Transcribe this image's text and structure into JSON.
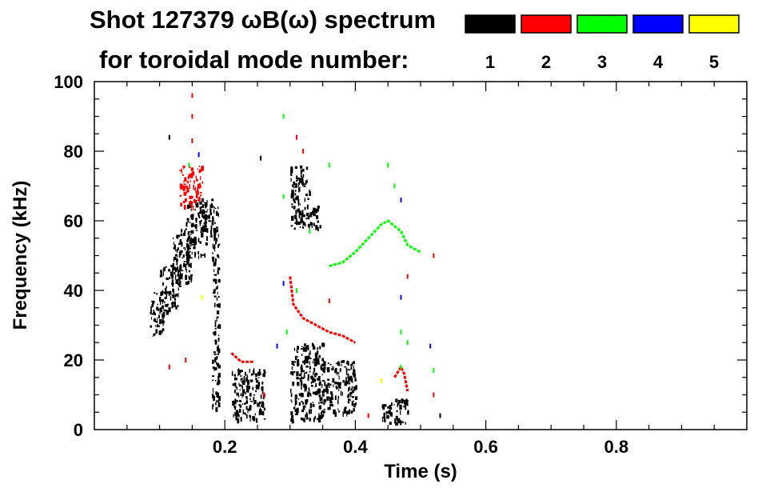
{
  "chart_data": {
    "type": "heatmap",
    "title_line1": "Shot 127379 ωB(ω) spectrum",
    "title_line2": "for toroidal mode number:",
    "xlabel": "Time (s)",
    "ylabel": "Frequency (kHz)",
    "xlim": [
      0.0,
      1.0
    ],
    "ylim": [
      0,
      100
    ],
    "x_ticks": [
      0.2,
      0.4,
      0.6,
      0.8
    ],
    "x_tick_labels": [
      "0.2",
      "0.4",
      "0.6",
      "0.8"
    ],
    "y_ticks": [
      0,
      20,
      40,
      60,
      80,
      100
    ],
    "y_tick_labels": [
      "0",
      "20",
      "40",
      "60",
      "80",
      "100"
    ],
    "legend": [
      {
        "label": "1",
        "color": "#000000"
      },
      {
        "label": "2",
        "color": "#ff0000"
      },
      {
        "label": "3",
        "color": "#00ff00"
      },
      {
        "label": "4",
        "color": "#0000ff"
      },
      {
        "label": "5",
        "color": "#ffff00"
      }
    ],
    "legend_placement": "top-right",
    "series": [
      {
        "mode": 1,
        "color": "#000000",
        "blobs": [
          {
            "t": [
              0.085,
              0.11
            ],
            "f": [
              27,
              40
            ]
          },
          {
            "t": [
              0.1,
              0.13
            ],
            "f": [
              35,
              48
            ]
          },
          {
            "t": [
              0.12,
              0.15
            ],
            "f": [
              42,
              58
            ]
          },
          {
            "t": [
              0.14,
              0.17
            ],
            "f": [
              50,
              66
            ]
          },
          {
            "t": [
              0.16,
              0.18
            ],
            "f": [
              55,
              67
            ]
          },
          {
            "t": [
              0.18,
              0.19
            ],
            "f": [
              5,
              65
            ]
          },
          {
            "t": [
              0.21,
              0.26
            ],
            "f": [
              3,
              18
            ]
          },
          {
            "t": [
              0.3,
              0.33
            ],
            "f": [
              58,
              76
            ]
          },
          {
            "t": [
              0.33,
              0.345
            ],
            "f": [
              58,
              65
            ]
          },
          {
            "t": [
              0.3,
              0.35
            ],
            "f": [
              3,
              25
            ]
          },
          {
            "t": [
              0.35,
              0.4
            ],
            "f": [
              5,
              20
            ]
          },
          {
            "t": [
              0.44,
              0.48
            ],
            "f": [
              2,
              9
            ]
          }
        ],
        "points": [
          [
            0.115,
            84
          ],
          [
            0.185,
            20
          ],
          [
            0.19,
            10
          ],
          [
            0.255,
            78
          ],
          [
            0.225,
            3
          ],
          [
            0.53,
            4
          ]
        ]
      },
      {
        "mode": 2,
        "color": "#ff0000",
        "blobs": [
          {
            "t": [
              0.13,
              0.165
            ],
            "f": [
              64,
              76
            ]
          }
        ],
        "lines": [
          [
            [
              0.3,
              44
            ],
            [
              0.305,
              36
            ],
            [
              0.32,
              32
            ],
            [
              0.34,
              30
            ],
            [
              0.36,
              28
            ],
            [
              0.38,
              27
            ],
            [
              0.395,
              25.5
            ],
            [
              0.4,
              25
            ]
          ],
          [
            [
              0.21,
              22
            ],
            [
              0.225,
              19.5
            ],
            [
              0.245,
              19.5
            ]
          ],
          [
            [
              0.46,
              15
            ],
            [
              0.47,
              18
            ],
            [
              0.475,
              16
            ],
            [
              0.48,
              11
            ]
          ]
        ],
        "points": [
          [
            0.15,
            96
          ],
          [
            0.15,
            90
          ],
          [
            0.15,
            83
          ],
          [
            0.31,
            84
          ],
          [
            0.32,
            80
          ],
          [
            0.36,
            37
          ],
          [
            0.48,
            44
          ],
          [
            0.52,
            10
          ],
          [
            0.52,
            50
          ],
          [
            0.115,
            18
          ],
          [
            0.14,
            20
          ],
          [
            0.26,
            10
          ],
          [
            0.42,
            4
          ]
        ]
      },
      {
        "mode": 3,
        "color": "#00ff00",
        "lines": [
          [
            [
              0.36,
              47
            ],
            [
              0.38,
              48
            ],
            [
              0.4,
              51
            ],
            [
              0.42,
              55
            ],
            [
              0.44,
              59
            ],
            [
              0.45,
              60
            ],
            [
              0.47,
              57
            ],
            [
              0.48,
              53
            ],
            [
              0.49,
              52
            ],
            [
              0.5,
              51
            ]
          ]
        ],
        "points": [
          [
            0.145,
            76
          ],
          [
            0.29,
            90
          ],
          [
            0.29,
            67
          ],
          [
            0.33,
            57
          ],
          [
            0.36,
            76
          ],
          [
            0.45,
            76
          ],
          [
            0.46,
            70
          ],
          [
            0.47,
            28
          ],
          [
            0.48,
            25
          ],
          [
            0.47,
            18
          ],
          [
            0.52,
            17
          ],
          [
            0.31,
            40
          ],
          [
            0.295,
            28
          ]
        ]
      },
      {
        "mode": 4,
        "color": "#0000ff",
        "points": [
          [
            0.16,
            79
          ],
          [
            0.29,
            42
          ],
          [
            0.47,
            66
          ],
          [
            0.47,
            38
          ],
          [
            0.515,
            24
          ],
          [
            0.28,
            24
          ]
        ]
      },
      {
        "mode": 5,
        "color": "#ffff00",
        "points": [
          [
            0.165,
            38
          ],
          [
            0.44,
            14
          ]
        ]
      }
    ]
  }
}
